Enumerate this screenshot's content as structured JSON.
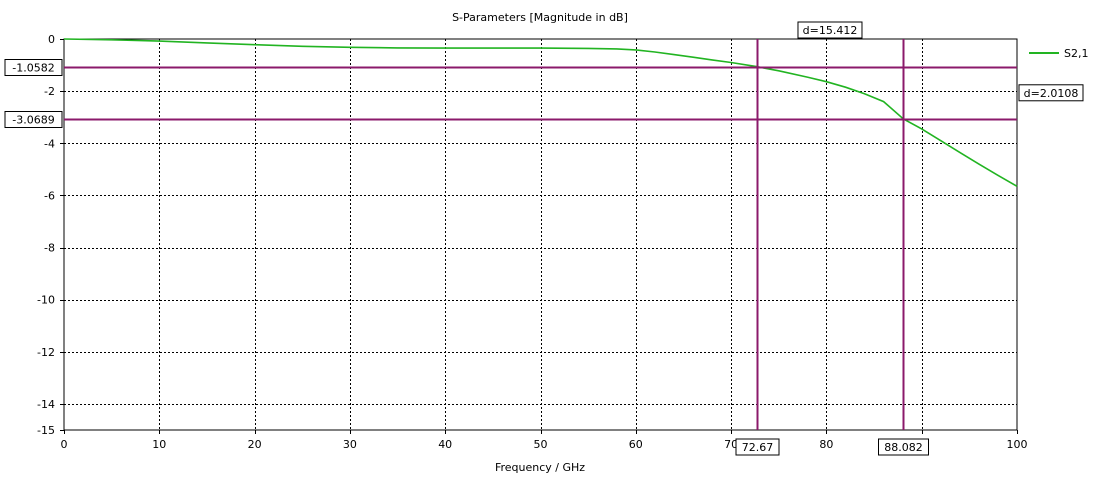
{
  "chart_data": {
    "type": "line",
    "title": "S-Parameters [Magnitude in dB]",
    "xlabel": "Frequency / GHz",
    "ylabel": "",
    "xlim": [
      0,
      100
    ],
    "ylim": [
      -15,
      0
    ],
    "x_ticks": [
      0,
      10,
      20,
      30,
      40,
      50,
      60,
      70,
      80,
      90,
      100
    ],
    "y_ticks": [
      0,
      -2,
      -4,
      -6,
      -8,
      -10,
      -12,
      -14,
      -15
    ],
    "grid": true,
    "grid_style": "dotted",
    "legend_position": "top-right",
    "colors": {
      "curve": "#22b422",
      "marker": "#8b1a6b",
      "grid": "#000000"
    },
    "series": [
      {
        "name": "S2,1",
        "x": [
          0,
          5,
          10,
          15,
          20,
          25,
          30,
          35,
          40,
          45,
          50,
          55,
          58,
          60,
          62,
          64,
          66,
          68,
          70,
          72.67,
          75,
          78,
          80,
          82,
          84,
          86,
          88.082,
          90,
          92,
          94,
          96,
          98,
          100
        ],
        "y": [
          0,
          -0.03,
          -0.08,
          -0.15,
          -0.22,
          -0.28,
          -0.32,
          -0.34,
          -0.35,
          -0.35,
          -0.35,
          -0.36,
          -0.38,
          -0.42,
          -0.5,
          -0.6,
          -0.7,
          -0.8,
          -0.9,
          -1.0582,
          -1.22,
          -1.46,
          -1.64,
          -1.85,
          -2.1,
          -2.4,
          -3.0689,
          -3.45,
          -3.9,
          -4.35,
          -4.8,
          -5.23,
          -5.65
        ]
      }
    ],
    "markers": {
      "vertical": [
        {
          "x": 72.67,
          "label": "72.67"
        },
        {
          "x": 88.082,
          "label": "88.082"
        }
      ],
      "horizontal": [
        {
          "y": -1.0582,
          "label": "-1.0582"
        },
        {
          "y": -3.0689,
          "label": "-3.0689"
        }
      ],
      "x_delta_label": "d=15.412",
      "y_delta_label": "d=2.0108"
    }
  }
}
